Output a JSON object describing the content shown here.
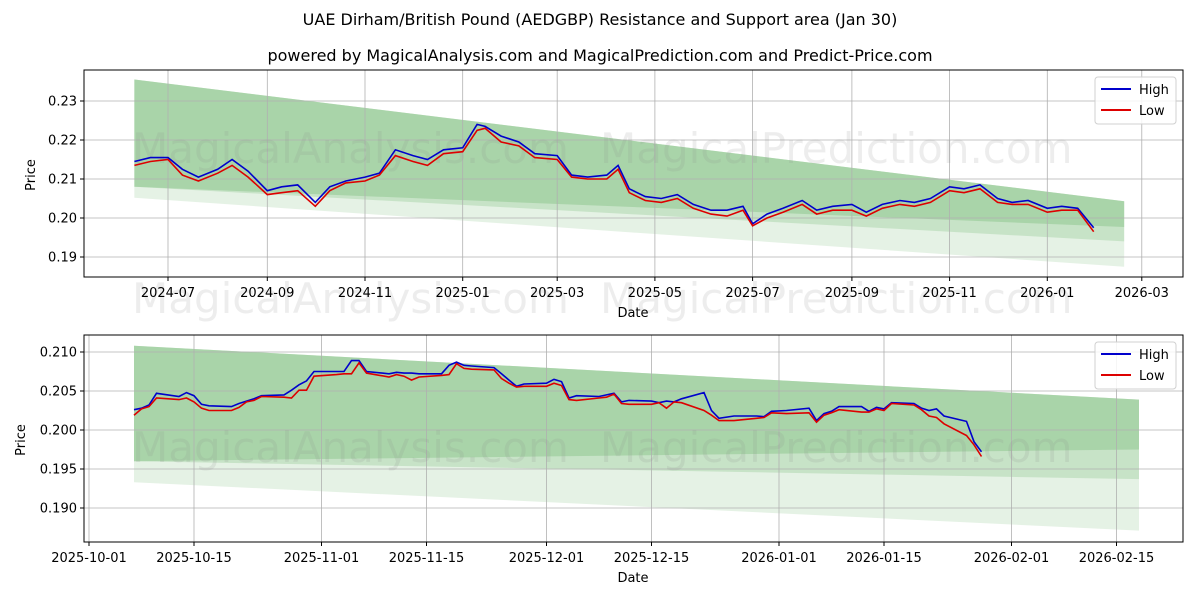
{
  "header": {
    "title": "UAE Dirham/British Pound (AEDGBP) Resistance and Support area (Jan 30)",
    "subtitle": "powered by MagicalAnalysis.com and MagicalPrediction.com and Predict-Price.com"
  },
  "watermarks": [
    "MagicalAnalysis.com",
    "MagicalPrediction.com"
  ],
  "colors": {
    "high": "#0000cc",
    "low": "#dd0000",
    "band_dark": "#8fc98f",
    "band_light": "#cfe8cf",
    "grid": "#b0b0b0"
  },
  "chart_data": [
    {
      "type": "line",
      "title": "UAE Dirham/British Pound (AEDGBP) Resistance and Support area (Jan 30)",
      "xlabel": "Date",
      "ylabel": "Price",
      "ylim": [
        0.185,
        0.238
      ],
      "yticks": [
        "0.19",
        "0.20",
        "0.21",
        "0.22",
        "0.23"
      ],
      "xticks": [
        "2024-07",
        "2024-09",
        "2024-11",
        "2025-01",
        "2025-03",
        "2025-05",
        "2025-07",
        "2025-09",
        "2025-11",
        "2026-01",
        "2026-03"
      ],
      "grid": true,
      "legend": {
        "position": "upper right",
        "entries": [
          "High",
          "Low"
        ]
      },
      "bands": {
        "x_range": [
          "2024-06-10",
          "2026-02-18"
        ],
        "outer_top": [
          0.2355,
          0.2043
        ],
        "dark_bottom": [
          0.208,
          0.1977
        ],
        "mid": [
          0.208,
          0.194
        ],
        "outer_bottom": [
          0.2052,
          0.1875
        ]
      },
      "x": [
        "2024-06-10",
        "2024-06-20",
        "2024-07-01",
        "2024-07-10",
        "2024-07-20",
        "2024-08-01",
        "2024-08-10",
        "2024-08-20",
        "2024-09-01",
        "2024-09-10",
        "2024-09-20",
        "2024-10-01",
        "2024-10-10",
        "2024-10-20",
        "2024-11-01",
        "2024-11-10",
        "2024-11-20",
        "2024-12-01",
        "2024-12-10",
        "2024-12-20",
        "2025-01-01",
        "2025-01-10",
        "2025-01-15",
        "2025-01-25",
        "2025-02-05",
        "2025-02-15",
        "2025-03-01",
        "2025-03-10",
        "2025-03-20",
        "2025-04-01",
        "2025-04-08",
        "2025-04-15",
        "2025-04-25",
        "2025-05-05",
        "2025-05-15",
        "2025-05-25",
        "2025-06-05",
        "2025-06-15",
        "2025-06-25",
        "2025-07-01",
        "2025-07-10",
        "2025-07-20",
        "2025-08-01",
        "2025-08-10",
        "2025-08-20",
        "2025-09-01",
        "2025-09-10",
        "2025-09-20",
        "2025-10-01",
        "2025-10-10",
        "2025-10-20",
        "2025-11-01",
        "2025-11-10",
        "2025-11-20",
        "2025-12-01",
        "2025-12-10",
        "2025-12-20",
        "2026-01-01",
        "2026-01-10",
        "2026-01-20",
        "2026-01-30"
      ],
      "series": [
        {
          "name": "High",
          "values": [
            0.2145,
            0.2155,
            0.2155,
            0.2125,
            0.2105,
            0.2125,
            0.215,
            0.212,
            0.207,
            0.208,
            0.2085,
            0.204,
            0.208,
            0.2095,
            0.2105,
            0.2115,
            0.2175,
            0.216,
            0.215,
            0.2175,
            0.218,
            0.224,
            0.2235,
            0.221,
            0.2195,
            0.2165,
            0.216,
            0.211,
            0.2105,
            0.211,
            0.2135,
            0.2075,
            0.2055,
            0.205,
            0.206,
            0.2035,
            0.202,
            0.202,
            0.203,
            0.1985,
            0.201,
            0.2025,
            0.2045,
            0.202,
            0.203,
            0.2035,
            0.2015,
            0.2035,
            0.2045,
            0.204,
            0.205,
            0.208,
            0.2075,
            0.2085,
            0.205,
            0.204,
            0.2045,
            0.2025,
            0.203,
            0.2025,
            0.1975
          ]
        },
        {
          "name": "Low",
          "values": [
            0.2135,
            0.2145,
            0.215,
            0.211,
            0.2095,
            0.2115,
            0.2135,
            0.2105,
            0.206,
            0.2065,
            0.207,
            0.203,
            0.207,
            0.209,
            0.2095,
            0.211,
            0.216,
            0.2145,
            0.2135,
            0.2165,
            0.217,
            0.2225,
            0.223,
            0.2195,
            0.2185,
            0.2155,
            0.215,
            0.2105,
            0.21,
            0.21,
            0.2125,
            0.2065,
            0.2045,
            0.204,
            0.205,
            0.2025,
            0.201,
            0.2005,
            0.202,
            0.198,
            0.2,
            0.2015,
            0.2035,
            0.201,
            0.202,
            0.202,
            0.2005,
            0.2025,
            0.2035,
            0.203,
            0.204,
            0.207,
            0.2065,
            0.2075,
            0.204,
            0.2035,
            0.2035,
            0.2015,
            0.202,
            0.202,
            0.1965
          ]
        }
      ]
    },
    {
      "type": "line",
      "xlabel": "Date",
      "ylabel": "Price",
      "ylim": [
        0.1862,
        0.2118
      ],
      "yticks": [
        "0.190",
        "0.195",
        "0.200",
        "0.205",
        "0.210"
      ],
      "xticks": [
        "2025-10-01",
        "2025-10-15",
        "2025-11-01",
        "2025-11-15",
        "2025-12-01",
        "2025-12-15",
        "2026-01-01",
        "2026-01-15",
        "2026-02-01",
        "2026-02-15"
      ],
      "grid": true,
      "legend": {
        "position": "upper right",
        "entries": [
          "High",
          "Low"
        ]
      },
      "bands": {
        "x_range": [
          "2025-10-07",
          "2026-02-18"
        ],
        "outer_top": [
          0.2108,
          0.2039
        ],
        "dark_bottom": [
          0.196,
          0.1975
        ],
        "mid": [
          0.196,
          0.1937
        ],
        "outer_bottom": [
          0.1933,
          0.1871
        ]
      },
      "x": [
        "2025-10-07",
        "2025-10-08",
        "2025-10-09",
        "2025-10-10",
        "2025-10-13",
        "2025-10-14",
        "2025-10-15",
        "2025-10-16",
        "2025-10-17",
        "2025-10-20",
        "2025-10-21",
        "2025-10-22",
        "2025-10-23",
        "2025-10-24",
        "2025-10-27",
        "2025-10-28",
        "2025-10-29",
        "2025-10-30",
        "2025-10-31",
        "2025-11-03",
        "2025-11-04",
        "2025-11-05",
        "2025-11-06",
        "2025-11-07",
        "2025-11-10",
        "2025-11-11",
        "2025-11-12",
        "2025-11-13",
        "2025-11-14",
        "2025-11-17",
        "2025-11-18",
        "2025-11-19",
        "2025-11-20",
        "2025-11-21",
        "2025-11-24",
        "2025-11-25",
        "2025-11-26",
        "2025-11-27",
        "2025-11-28",
        "2025-12-01",
        "2025-12-02",
        "2025-12-03",
        "2025-12-04",
        "2025-12-05",
        "2025-12-08",
        "2025-12-09",
        "2025-12-10",
        "2025-12-11",
        "2025-12-12",
        "2025-12-15",
        "2025-12-16",
        "2025-12-17",
        "2025-12-18",
        "2025-12-19",
        "2025-12-22",
        "2025-12-23",
        "2025-12-24",
        "2025-12-26",
        "2025-12-29",
        "2025-12-30",
        "2025-12-31",
        "2026-01-02",
        "2026-01-05",
        "2026-01-06",
        "2026-01-07",
        "2026-01-08",
        "2026-01-09",
        "2026-01-12",
        "2026-01-13",
        "2026-01-14",
        "2026-01-15",
        "2026-01-16",
        "2026-01-19",
        "2026-01-20",
        "2026-01-21",
        "2026-01-22",
        "2026-01-23",
        "2026-01-26",
        "2026-01-27",
        "2026-01-28"
      ],
      "series": [
        {
          "name": "High",
          "values": [
            0.2026,
            0.2028,
            0.2032,
            0.2047,
            0.2043,
            0.2048,
            0.2044,
            0.2033,
            0.2031,
            0.203,
            0.2034,
            0.2037,
            0.204,
            0.2044,
            0.2045,
            0.2051,
            0.2058,
            0.2063,
            0.2075,
            0.2075,
            0.2075,
            0.2089,
            0.2089,
            0.2075,
            0.2072,
            0.2074,
            0.2073,
            0.2073,
            0.2072,
            0.2072,
            0.2083,
            0.2087,
            0.2083,
            0.2082,
            0.208,
            0.2072,
            0.2064,
            0.2056,
            0.2059,
            0.206,
            0.2065,
            0.2062,
            0.2041,
            0.2044,
            0.2043,
            0.2045,
            0.2047,
            0.2036,
            0.2038,
            0.2037,
            0.2035,
            0.2037,
            0.2036,
            0.204,
            0.2048,
            0.2025,
            0.2015,
            0.2018,
            0.2018,
            0.2017,
            0.2024,
            0.2025,
            0.2028,
            0.2012,
            0.2021,
            0.2024,
            0.203,
            0.203,
            0.2024,
            0.2029,
            0.2027,
            0.2035,
            0.2034,
            0.2028,
            0.2025,
            0.2027,
            0.2018,
            0.2011,
            0.1985,
            0.1972
          ]
        },
        {
          "name": "Low",
          "values": [
            0.2019,
            0.2027,
            0.203,
            0.2041,
            0.2039,
            0.2041,
            0.2036,
            0.2028,
            0.2025,
            0.2025,
            0.2029,
            0.2036,
            0.2038,
            0.2043,
            0.2042,
            0.2041,
            0.2051,
            0.2051,
            0.2069,
            0.2071,
            0.2072,
            0.2072,
            0.2086,
            0.2073,
            0.2068,
            0.2071,
            0.2069,
            0.2064,
            0.2068,
            0.207,
            0.2071,
            0.2085,
            0.2079,
            0.2078,
            0.2077,
            0.2066,
            0.206,
            0.2055,
            0.2056,
            0.2056,
            0.206,
            0.2057,
            0.2039,
            0.2038,
            0.2041,
            0.2042,
            0.2046,
            0.2034,
            0.2033,
            0.2033,
            0.2035,
            0.2028,
            0.2036,
            0.2035,
            0.2025,
            0.2019,
            0.2012,
            0.2012,
            0.2015,
            0.2016,
            0.2022,
            0.2021,
            0.2022,
            0.201,
            0.2019,
            0.2022,
            0.2026,
            0.2023,
            0.2023,
            0.2027,
            0.2025,
            0.2034,
            0.2032,
            0.2026,
            0.2018,
            0.2016,
            0.2008,
            0.1993,
            0.1981,
            0.1966
          ]
        }
      ]
    }
  ]
}
